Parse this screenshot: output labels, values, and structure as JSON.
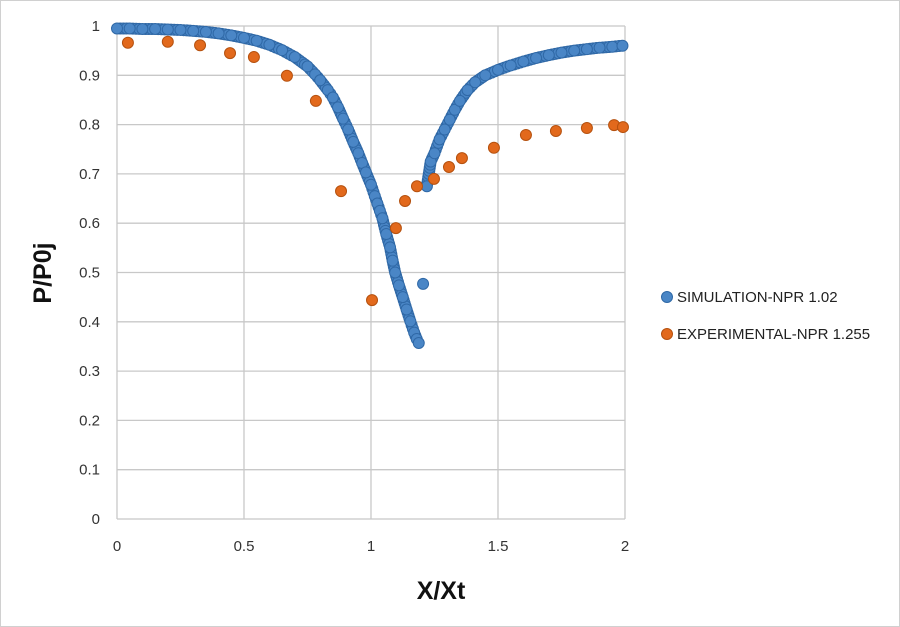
{
  "chart_data": {
    "type": "scatter",
    "title": "",
    "xlabel": "X/Xt",
    "ylabel": "P/P0j",
    "xlim": [
      0,
      2
    ],
    "ylim": [
      0,
      1
    ],
    "xticks": [
      "0",
      "0.5",
      "1",
      "1.5",
      "2"
    ],
    "yticks": [
      "0",
      "0.1",
      "0.2",
      "0.3",
      "0.4",
      "0.5",
      "0.6",
      "0.7",
      "0.8",
      "0.9",
      "1"
    ],
    "xtick_values": [
      0,
      0.5,
      1,
      1.5,
      2
    ],
    "ytick_values": [
      0,
      0.1,
      0.2,
      0.3,
      0.4,
      0.5,
      0.6,
      0.7,
      0.8,
      0.9,
      1
    ],
    "grid": true,
    "legend_position": "right",
    "series": [
      {
        "name": "SIMULATION-NPR 1.02",
        "color": "#4a86c6",
        "edge": "#2f68a6",
        "points": [
          [
            0,
            0.995
          ],
          [
            0.05,
            0.995
          ],
          [
            0.1,
            0.994
          ],
          [
            0.15,
            0.994
          ],
          [
            0.2,
            0.993
          ],
          [
            0.25,
            0.992
          ],
          [
            0.3,
            0.99
          ],
          [
            0.35,
            0.988
          ],
          [
            0.4,
            0.985
          ],
          [
            0.45,
            0.981
          ],
          [
            0.5,
            0.976
          ],
          [
            0.55,
            0.97
          ],
          [
            0.6,
            0.962
          ],
          [
            0.65,
            0.951
          ],
          [
            0.7,
            0.937
          ],
          [
            0.75,
            0.918
          ],
          [
            0.78,
            0.902
          ],
          [
            0.8,
            0.89
          ],
          [
            0.83,
            0.87
          ],
          [
            0.85,
            0.855
          ],
          [
            0.87,
            0.835
          ],
          [
            0.89,
            0.812
          ],
          [
            0.91,
            0.79
          ],
          [
            0.93,
            0.765
          ],
          [
            0.95,
            0.742
          ],
          [
            0.965,
            0.722
          ],
          [
            0.98,
            0.703
          ],
          [
            1.0,
            0.678
          ],
          [
            1.015,
            0.655
          ],
          [
            1.025,
            0.64
          ],
          [
            1.035,
            0.625
          ],
          [
            1.045,
            0.61
          ],
          [
            1.06,
            0.578
          ],
          [
            1.075,
            0.551
          ],
          [
            1.085,
            0.524
          ],
          [
            1.095,
            0.5
          ],
          [
            1.11,
            0.474
          ],
          [
            1.125,
            0.45
          ],
          [
            1.14,
            0.425
          ],
          [
            1.155,
            0.401
          ],
          [
            1.17,
            0.378
          ],
          [
            1.18,
            0.365
          ],
          [
            1.188,
            0.357
          ],
          [
            1.205,
            0.477
          ],
          [
            1.22,
            0.675
          ],
          [
            1.235,
            0.725
          ],
          [
            1.25,
            0.742
          ],
          [
            1.27,
            0.77
          ],
          [
            1.29,
            0.79
          ],
          [
            1.31,
            0.81
          ],
          [
            1.33,
            0.83
          ],
          [
            1.35,
            0.848
          ],
          [
            1.38,
            0.87
          ],
          [
            1.41,
            0.886
          ],
          [
            1.45,
            0.9
          ],
          [
            1.5,
            0.911
          ],
          [
            1.55,
            0.92
          ],
          [
            1.6,
            0.928
          ],
          [
            1.65,
            0.935
          ],
          [
            1.7,
            0.941
          ],
          [
            1.75,
            0.946
          ],
          [
            1.8,
            0.95
          ],
          [
            1.85,
            0.953
          ],
          [
            1.9,
            0.956
          ],
          [
            1.95,
            0.958
          ],
          [
            1.99,
            0.96
          ]
        ]
      },
      {
        "name": "EXPERIMENTAL-NPR 1.255",
        "color": "#e2691c",
        "edge": "#b5510f",
        "points": [
          [
            0.043,
            0.966
          ],
          [
            0.2,
            0.968
          ],
          [
            0.327,
            0.961
          ],
          [
            0.445,
            0.945
          ],
          [
            0.539,
            0.937
          ],
          [
            0.669,
            0.899
          ],
          [
            0.783,
            0.848
          ],
          [
            0.882,
            0.665
          ],
          [
            1.004,
            0.444
          ],
          [
            1.098,
            0.59
          ],
          [
            1.134,
            0.645
          ],
          [
            1.181,
            0.675
          ],
          [
            1.248,
            0.69
          ],
          [
            1.307,
            0.714
          ],
          [
            1.358,
            0.732
          ],
          [
            1.484,
            0.753
          ],
          [
            1.61,
            0.779
          ],
          [
            1.728,
            0.787
          ],
          [
            1.85,
            0.793
          ],
          [
            1.957,
            0.799
          ],
          [
            1.992,
            0.795
          ]
        ]
      }
    ]
  }
}
